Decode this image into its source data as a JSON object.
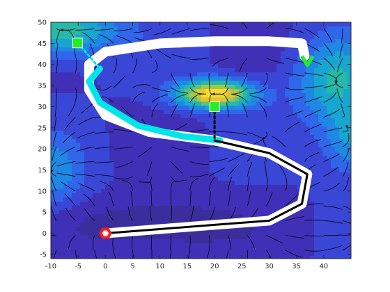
{
  "chart_data": {
    "type": "contour",
    "title": "",
    "xlabel": "",
    "ylabel": "",
    "xlim": [
      -10,
      45
    ],
    "ylim": [
      -6,
      50
    ],
    "xticks": [
      -10,
      -5,
      0,
      5,
      10,
      15,
      20,
      25,
      30,
      35,
      40
    ],
    "yticks": [
      -5,
      0,
      5,
      10,
      15,
      20,
      25,
      30,
      35,
      40,
      45,
      50
    ],
    "grid": false,
    "legend": "none",
    "field": {
      "description": "potential field with attractive peak and flow streamlines",
      "peak_center": [
        20,
        33
      ],
      "peak_color": "#f5dc2a",
      "low_color": "#3a2e9c"
    },
    "paths": [
      {
        "name": "",
        "color": "#ffffff",
        "points": [
          [
            36.5,
            42
          ],
          [
            36,
            45
          ],
          [
            30,
            45.5
          ],
          [
            20,
            45.5
          ],
          [
            10,
            45
          ],
          [
            0,
            43
          ],
          [
            -3,
            40
          ],
          [
            -3,
            34
          ],
          [
            0,
            28
          ],
          [
            8,
            24
          ],
          [
            20,
            22
          ],
          [
            30,
            19
          ],
          [
            37,
            14
          ],
          [
            36,
            7
          ],
          [
            30,
            3
          ],
          [
            20,
            2
          ],
          [
            10,
            1
          ],
          [
            0,
            0
          ]
        ]
      },
      {
        "name": "",
        "color": "#00e5e5",
        "points": [
          [
            -1,
            39
          ],
          [
            -3,
            36
          ],
          [
            -1,
            31
          ],
          [
            6,
            25.5
          ],
          [
            14,
            23
          ],
          [
            21,
            22
          ]
        ]
      },
      {
        "name": "",
        "color": "#000000",
        "points": [
          [
            20,
            22
          ],
          [
            30,
            19
          ],
          [
            37,
            14
          ],
          [
            36,
            7
          ],
          [
            30,
            3
          ],
          [
            20,
            2
          ],
          [
            10,
            1
          ],
          [
            0,
            0
          ]
        ]
      },
      {
        "name": "",
        "color": "#00e5e5",
        "style": "dotted",
        "points": [
          [
            -5,
            45
          ],
          [
            -1,
            39
          ]
        ]
      },
      {
        "name": "",
        "color": "#000000",
        "style": "dotted",
        "points": [
          [
            20,
            30
          ],
          [
            20,
            22
          ]
        ]
      }
    ],
    "markers": [
      {
        "name": "",
        "x": -5.1,
        "y": 45.1,
        "color": "#22ee22",
        "shape": "square"
      },
      {
        "name": "",
        "x": 37,
        "y": 41,
        "color": "#22ee22",
        "shape": "chevron"
      },
      {
        "name": "",
        "x": 20,
        "y": 30,
        "color": "#22ee22",
        "shape": "square"
      },
      {
        "name": "",
        "x": 0,
        "y": 0,
        "color": "#ff1a1a",
        "shape": "hexagon"
      }
    ]
  }
}
